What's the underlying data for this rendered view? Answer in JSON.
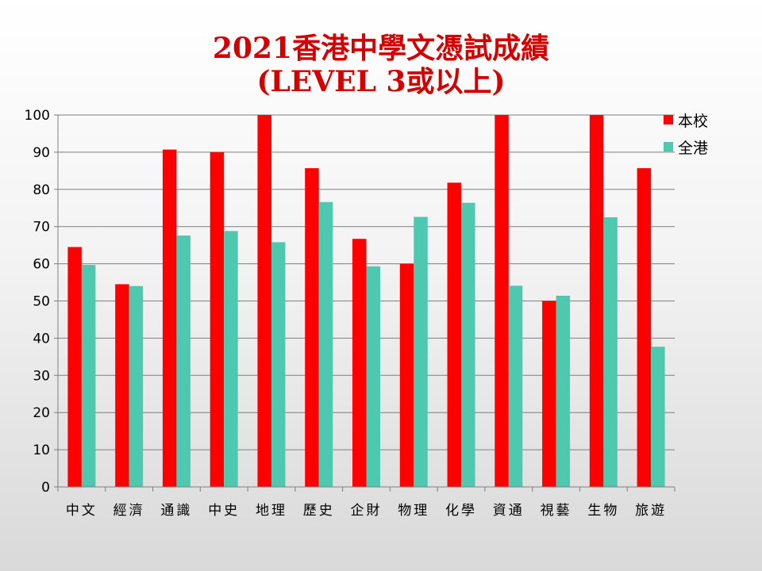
{
  "title": {
    "line1": "2021香港中學文憑試成績",
    "line2": "(LEVEL 3或以上)"
  },
  "chart_data": {
    "type": "bar",
    "categories": [
      "中文",
      "經濟",
      "通識",
      "中史",
      "地理",
      "歷史",
      "企財",
      "物理",
      "化學",
      "資通",
      "視藝",
      "生物",
      "旅遊"
    ],
    "series": [
      {
        "name": "本校",
        "color": "#ff0000",
        "values": [
          64.5,
          54.5,
          90.7,
          90,
          100,
          85.7,
          66.7,
          60,
          81.8,
          100,
          50,
          100,
          85.7
        ]
      },
      {
        "name": "全港",
        "color": "#4ec9b0",
        "values": [
          59.7,
          54,
          67.6,
          68.8,
          65.8,
          76.6,
          59.3,
          72.6,
          76.4,
          54.1,
          51.4,
          72.5,
          37.7
        ]
      }
    ],
    "ylim": [
      0,
      100
    ],
    "yticks": [
      0,
      10,
      20,
      30,
      40,
      50,
      60,
      70,
      80,
      90,
      100
    ],
    "grid": true,
    "legend": "right"
  }
}
